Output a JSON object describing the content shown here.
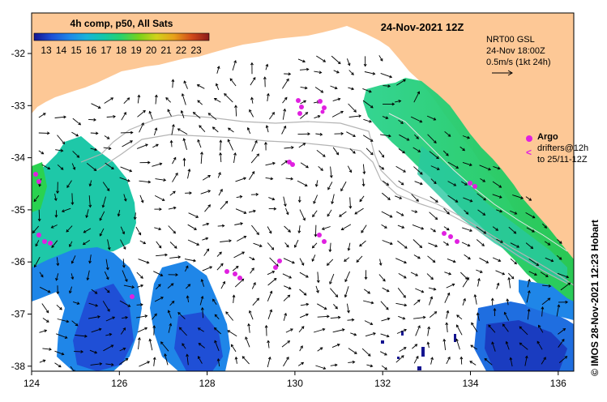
{
  "map": {
    "title": "24-Nov-2021 12Z",
    "colorbar": {
      "title": "4h comp, p50, All Sats",
      "ticks": [
        "13",
        "14",
        "15",
        "16",
        "17",
        "18",
        "19",
        "20",
        "21",
        "22",
        "23"
      ],
      "colors": [
        "#1a1aa6",
        "#1f4fd6",
        "#1f86e8",
        "#19b3d9",
        "#14c8a8",
        "#1fd27a",
        "#3ad24a",
        "#7ad21a",
        "#c8c81a",
        "#e8a01a",
        "#e8601a",
        "#c82a1a",
        "#8c1a1a"
      ]
    },
    "lon_ticks": [
      "124",
      "126",
      "128",
      "130",
      "132",
      "134",
      "136"
    ],
    "lat_ticks": [
      "-32",
      "-33",
      "-34",
      "-35",
      "-36",
      "-37",
      "-38"
    ],
    "currents": {
      "source": "NRT00 GSL",
      "time": "24-Nov 18:00Z",
      "scale_label": "0.5m/s (1kt 24h)"
    },
    "argo": {
      "label": "Argo",
      "drifters_line1": "drifters@12h",
      "drifters_line2": "to 25/11-12Z"
    },
    "credit": "© IMOS 28-Nov-2021 12:23 Hobart",
    "colors": {
      "land": "#fdc896",
      "drifter": "#e020e0",
      "contour": "#b4b4b4"
    }
  }
}
